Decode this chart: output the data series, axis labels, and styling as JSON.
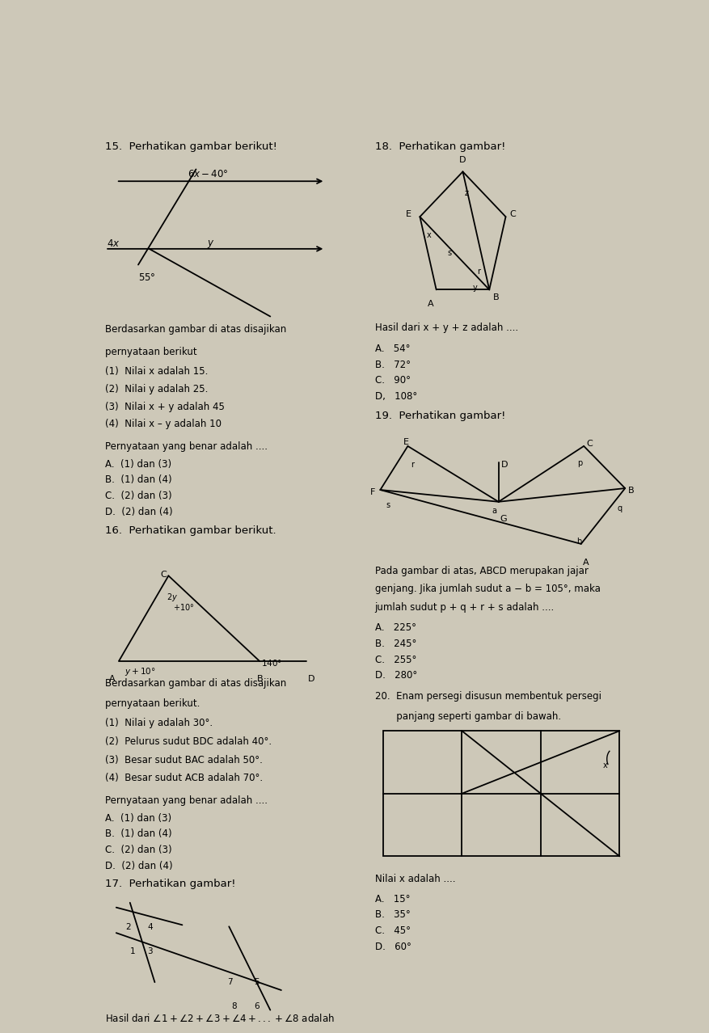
{
  "bg_color": "#cdc8b8",
  "page_width": 8.78,
  "page_height": 12.78,
  "lc": 0.03,
  "rc": 0.52,
  "fs": 9.5,
  "fss": 8.5,
  "fsl": 8.0,
  "q15_title": "15.  Perhatikan gambar berikut!",
  "q16_title": "16.  Perhatikan gambar berikut.",
  "q17_title": "17.  Perhatikan gambar!",
  "q18_title": "18.  Perhatikan gambar!",
  "q19_title": "19.  Perhatikan gambar!",
  "q20_title": "20.  Enam persegi disusun membentuk persegi",
  "q20_sub": "       panjang seperti gambar di bawah."
}
